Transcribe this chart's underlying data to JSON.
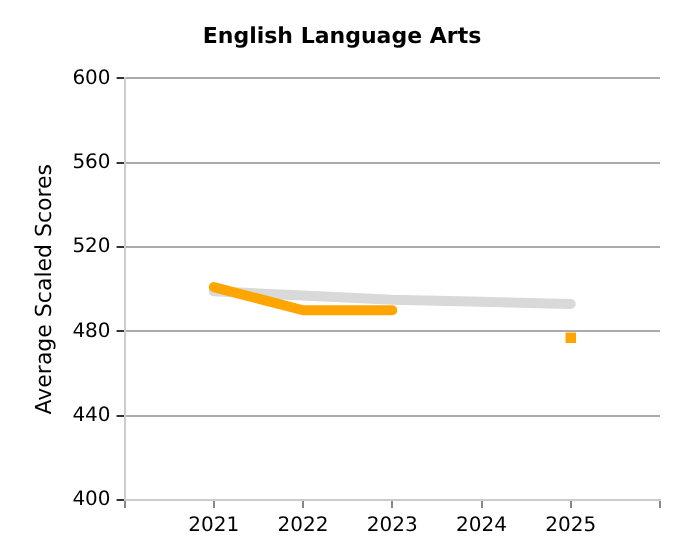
{
  "chart_data": {
    "type": "line",
    "title": "English Language Arts",
    "ylabel": "Average Scaled Scores",
    "x": [
      2021,
      2022,
      2023,
      2024,
      2025
    ],
    "xlim": [
      2020,
      2026
    ],
    "xticks": [
      {
        "value": 2020,
        "label": null
      },
      2021,
      2022,
      2023,
      2024,
      2025,
      {
        "value": 2026,
        "label": null
      }
    ],
    "ylim": [
      400,
      600
    ],
    "yticks": [
      400,
      440,
      480,
      520,
      560,
      600
    ],
    "grid": "y",
    "legend": false,
    "line_style": "solid",
    "marker": "none",
    "series": [
      {
        "color": "#d9d9d9",
        "values": [
          499,
          497,
          495,
          494,
          493
        ]
      },
      {
        "color": "#ffa500",
        "values": [
          501,
          490,
          490,
          null,
          null
        ]
      },
      {
        "type": "scatter",
        "marker": "square",
        "color": "#ffa500",
        "x": [
          2025
        ],
        "values": [
          477
        ]
      }
    ]
  }
}
